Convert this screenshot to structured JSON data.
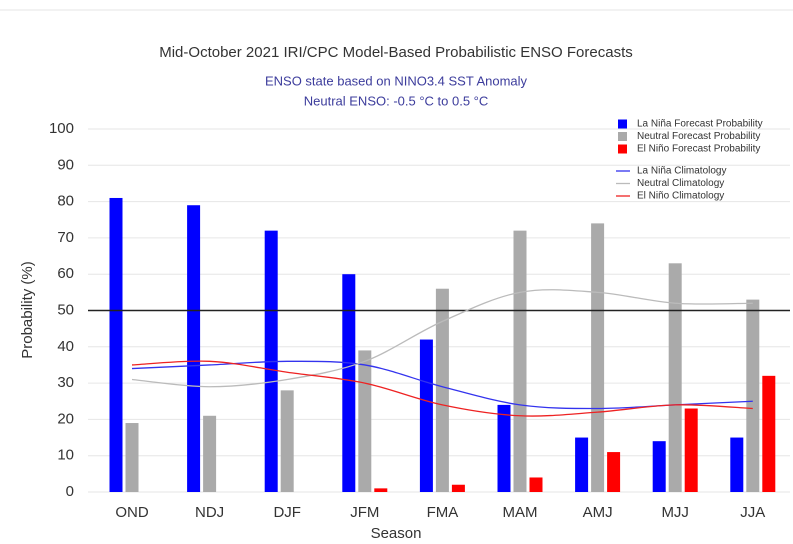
{
  "chart_data": {
    "type": "bar",
    "title": "Mid-October 2021 IRI/CPC Model-Based Probabilistic ENSO Forecasts",
    "subtitle": [
      "ENSO state based on NINO3.4 SST Anomaly",
      "Neutral ENSO: -0.5 °C to 0.5 °C"
    ],
    "x_label": "Season",
    "y_label": "Probability (%)",
    "categories": [
      "OND",
      "NDJ",
      "DJF",
      "JFM",
      "FMA",
      "MAM",
      "AMJ",
      "MJJ",
      "JJA"
    ],
    "series": [
      {
        "name": "La Niña Forecast Probability",
        "color": "#0000ff",
        "values": [
          81,
          79,
          72,
          60,
          42,
          24,
          15,
          14,
          15
        ]
      },
      {
        "name": "Neutral Forecast Probability",
        "color": "#aaaaaa",
        "values": [
          19,
          21,
          28,
          39,
          56,
          72,
          74,
          63,
          53
        ]
      },
      {
        "name": "El Niño Forecast Probability",
        "color": "#ff0000",
        "values": [
          0,
          0,
          0,
          1,
          2,
          4,
          11,
          23,
          32
        ]
      }
    ],
    "lines": [
      {
        "name": "La Niña Climatology",
        "color": "#3333ee",
        "values": [
          34,
          35,
          36,
          35,
          29,
          24,
          23,
          24,
          25
        ]
      },
      {
        "name": "Neutral Climatology",
        "color": "#bbbbbb",
        "values": [
          31,
          29,
          31,
          36,
          47,
          55,
          55,
          52,
          52
        ]
      },
      {
        "name": "El Niño Climatology",
        "color": "#ee2222",
        "values": [
          35,
          36,
          33,
          30,
          24,
          21,
          22,
          24,
          23
        ]
      }
    ],
    "reference_line": 50,
    "ylim": [
      0,
      100
    ],
    "yticks": [
      0,
      10,
      20,
      30,
      40,
      50,
      60,
      70,
      80,
      90,
      100
    ],
    "grid": true
  }
}
